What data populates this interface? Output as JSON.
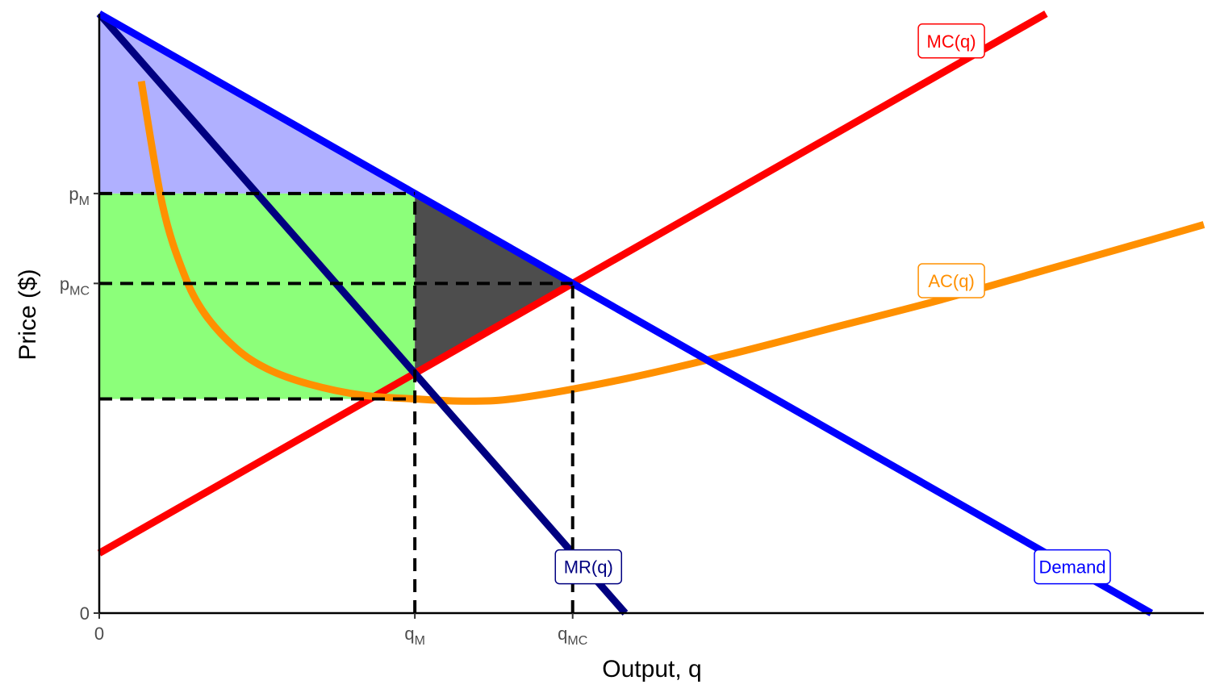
{
  "chart_data": {
    "type": "line",
    "title": "",
    "xlabel": "Output, q",
    "ylabel": "Price ($)",
    "xlim": [
      0,
      10.5
    ],
    "ylim": [
      0,
      11
    ],
    "grid": false,
    "legend": "none",
    "colors": {
      "demand": "#0000ff",
      "mr": "#000080",
      "mc": "#ff0000",
      "ac": "#ff9000",
      "consumer_surplus": "#b0b0ff",
      "profit": "#8cff7a",
      "deadweight_loss": "#4d4d4d",
      "guide": "#000000"
    },
    "series": [
      {
        "key": "demand",
        "name": "Demand",
        "x": [
          0,
          10
        ],
        "y": [
          11,
          0
        ]
      },
      {
        "key": "mr",
        "name": "MR(q)",
        "x": [
          0,
          5
        ],
        "y": [
          11,
          0
        ]
      },
      {
        "key": "mc",
        "name": "MC(q)",
        "x": [
          0,
          9
        ],
        "y": [
          1.1,
          11
        ]
      },
      {
        "key": "ac",
        "name": "AC(q)",
        "x": [
          0.4,
          0.6,
          0.8,
          1.0,
          1.3,
          1.6,
          2.0,
          2.5,
          3.0,
          3.5,
          4.0,
          5.0,
          6.0,
          7.0,
          8.0,
          9.0,
          10.0,
          10.5
        ],
        "y": [
          9.76,
          7.5,
          6.25,
          5.5,
          4.86,
          4.48,
          4.2,
          4.0,
          3.93,
          3.89,
          3.95,
          4.3,
          4.75,
          5.25,
          5.75,
          6.3,
          6.85,
          7.13
        ]
      }
    ],
    "key_points": {
      "q_M": 3.0,
      "p_M": 7.7,
      "q_MC": 4.5,
      "p_MC": 6.05,
      "ac_at_qM": 3.93
    },
    "x_ticks": [
      {
        "value": 0,
        "label": "0"
      },
      {
        "value": 3.0,
        "label": "q",
        "sub": "M"
      },
      {
        "value": 4.5,
        "label": "q",
        "sub": "MC"
      }
    ],
    "y_ticks": [
      {
        "value": 0,
        "label": "0"
      },
      {
        "value": 6.05,
        "label": "p",
        "sub": "MC"
      },
      {
        "value": 7.7,
        "label": "p",
        "sub": "M"
      }
    ],
    "labels": [
      {
        "text": "MC(q)",
        "x": 8.1,
        "y": 10.5,
        "color": "#ff0000"
      },
      {
        "text": "AC(q)",
        "x": 8.1,
        "y": 6.1,
        "color": "#ff9000"
      },
      {
        "text": "MR(q)",
        "x": 4.65,
        "y": 0.85,
        "color": "#000080"
      },
      {
        "text": "Demand",
        "x": 9.25,
        "y": 0.85,
        "color": "#0000ff"
      }
    ]
  }
}
